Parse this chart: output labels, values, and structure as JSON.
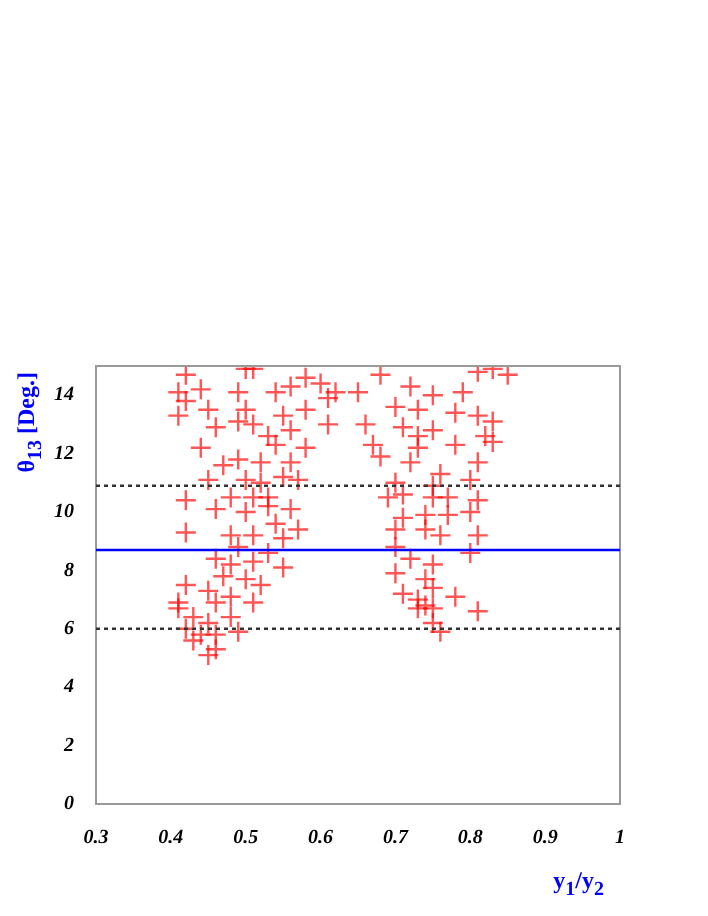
{
  "chart_data": {
    "type": "scatter",
    "xlabel": "y$_{1}$/y$_{2}$",
    "ylabel": "θ$_{13}$ [Deg.]",
    "xlim": [
      0.3,
      1
    ],
    "xticks": [
      0.3,
      0.4,
      0.5,
      0.6,
      0.7,
      0.8,
      0.9,
      1
    ],
    "ylim": [
      0,
      15
    ],
    "yticks": [
      0,
      2,
      4,
      6,
      8,
      10,
      12,
      14
    ],
    "grid": false,
    "legend": false,
    "marker": "cross",
    "series": [
      {
        "color": "#ff0000",
        "x": [
          0.42,
          0.41,
          0.44,
          0.45,
          0.41,
          0.42,
          0.46,
          0.44,
          0.5,
          0.51,
          0.49,
          0.5,
          0.51,
          0.49,
          0.53,
          0.55,
          0.54,
          0.56,
          0.58,
          0.6,
          0.61,
          0.62,
          0.65,
          0.61,
          0.58,
          0.56,
          0.54,
          0.58,
          0.56,
          0.52,
          0.49,
          0.47,
          0.45,
          0.5,
          0.52,
          0.55,
          0.57,
          0.48,
          0.51,
          0.53,
          0.42,
          0.46,
          0.5,
          0.53,
          0.56,
          0.54,
          0.57,
          0.55,
          0.42,
          0.48,
          0.51,
          0.49,
          0.53,
          0.46,
          0.48,
          0.51,
          0.55,
          0.47,
          0.5,
          0.52,
          0.42,
          0.45,
          0.48,
          0.41,
          0.46,
          0.51,
          0.43,
          0.45,
          0.42,
          0.44,
          0.46,
          0.43,
          0.46,
          0.49,
          0.45,
          0.41,
          0.48,
          0.68,
          0.72,
          0.75,
          0.79,
          0.81,
          0.83,
          0.85,
          0.7,
          0.73,
          0.78,
          0.81,
          0.83,
          0.66,
          0.71,
          0.73,
          0.75,
          0.82,
          0.67,
          0.73,
          0.78,
          0.83,
          0.68,
          0.72,
          0.76,
          0.81,
          0.7,
          0.75,
          0.8,
          0.69,
          0.71,
          0.75,
          0.77,
          0.81,
          0.71,
          0.74,
          0.77,
          0.8,
          0.7,
          0.74,
          0.76,
          0.81,
          0.7,
          0.72,
          0.75,
          0.8,
          0.7,
          0.74,
          0.71,
          0.75,
          0.78,
          0.73,
          0.74,
          0.75,
          0.73,
          0.75,
          0.76,
          0.81
        ],
        "values": [
          14.7,
          14.1,
          14.2,
          13.5,
          13.3,
          13.8,
          12.9,
          12.2,
          14.9,
          14.9,
          14.1,
          13.5,
          13.0,
          13.1,
          12.6,
          13.3,
          14.1,
          14.3,
          14.6,
          14.4,
          13.9,
          14.1,
          14.1,
          13.0,
          13.5,
          12.8,
          12.3,
          12.2,
          11.7,
          11.7,
          11.8,
          11.6,
          11.1,
          11.1,
          11.0,
          11.2,
          11.1,
          10.5,
          10.5,
          10.5,
          10.4,
          10.1,
          10.0,
          10.2,
          10.1,
          9.6,
          9.4,
          9.1,
          9.3,
          9.2,
          9.2,
          8.8,
          8.6,
          8.4,
          8.2,
          8.3,
          8.1,
          7.8,
          7.7,
          7.5,
          7.5,
          7.3,
          7.1,
          6.9,
          6.9,
          6.9,
          6.4,
          6.2,
          6.0,
          5.8,
          5.8,
          5.6,
          5.3,
          5.9,
          5.1,
          6.7,
          6.4,
          14.7,
          14.3,
          14.0,
          14.1,
          14.8,
          14.9,
          14.7,
          13.6,
          13.5,
          13.4,
          13.3,
          13.1,
          13.0,
          12.9,
          12.6,
          12.8,
          12.6,
          12.3,
          12.2,
          12.3,
          12.4,
          11.9,
          11.7,
          11.3,
          11.7,
          11.0,
          10.9,
          11.1,
          10.5,
          10.6,
          10.5,
          10.5,
          10.4,
          9.8,
          9.9,
          9.9,
          10.0,
          9.4,
          9.4,
          9.2,
          9.2,
          8.8,
          8.4,
          8.2,
          8.6,
          7.9,
          7.7,
          7.2,
          7.4,
          7.1,
          7.0,
          6.8,
          6.7,
          6.7,
          6.2,
          5.9,
          6.6
        ]
      }
    ],
    "ref_lines": [
      {
        "axis": "y",
        "value": 10.9,
        "color": "#333333",
        "line_style": "dotted"
      },
      {
        "axis": "y",
        "value": 8.7,
        "color": "#0000ff",
        "line_style": "solid"
      },
      {
        "axis": "y",
        "value": 6.0,
        "color": "#333333",
        "line_style": "dotted"
      }
    ]
  }
}
